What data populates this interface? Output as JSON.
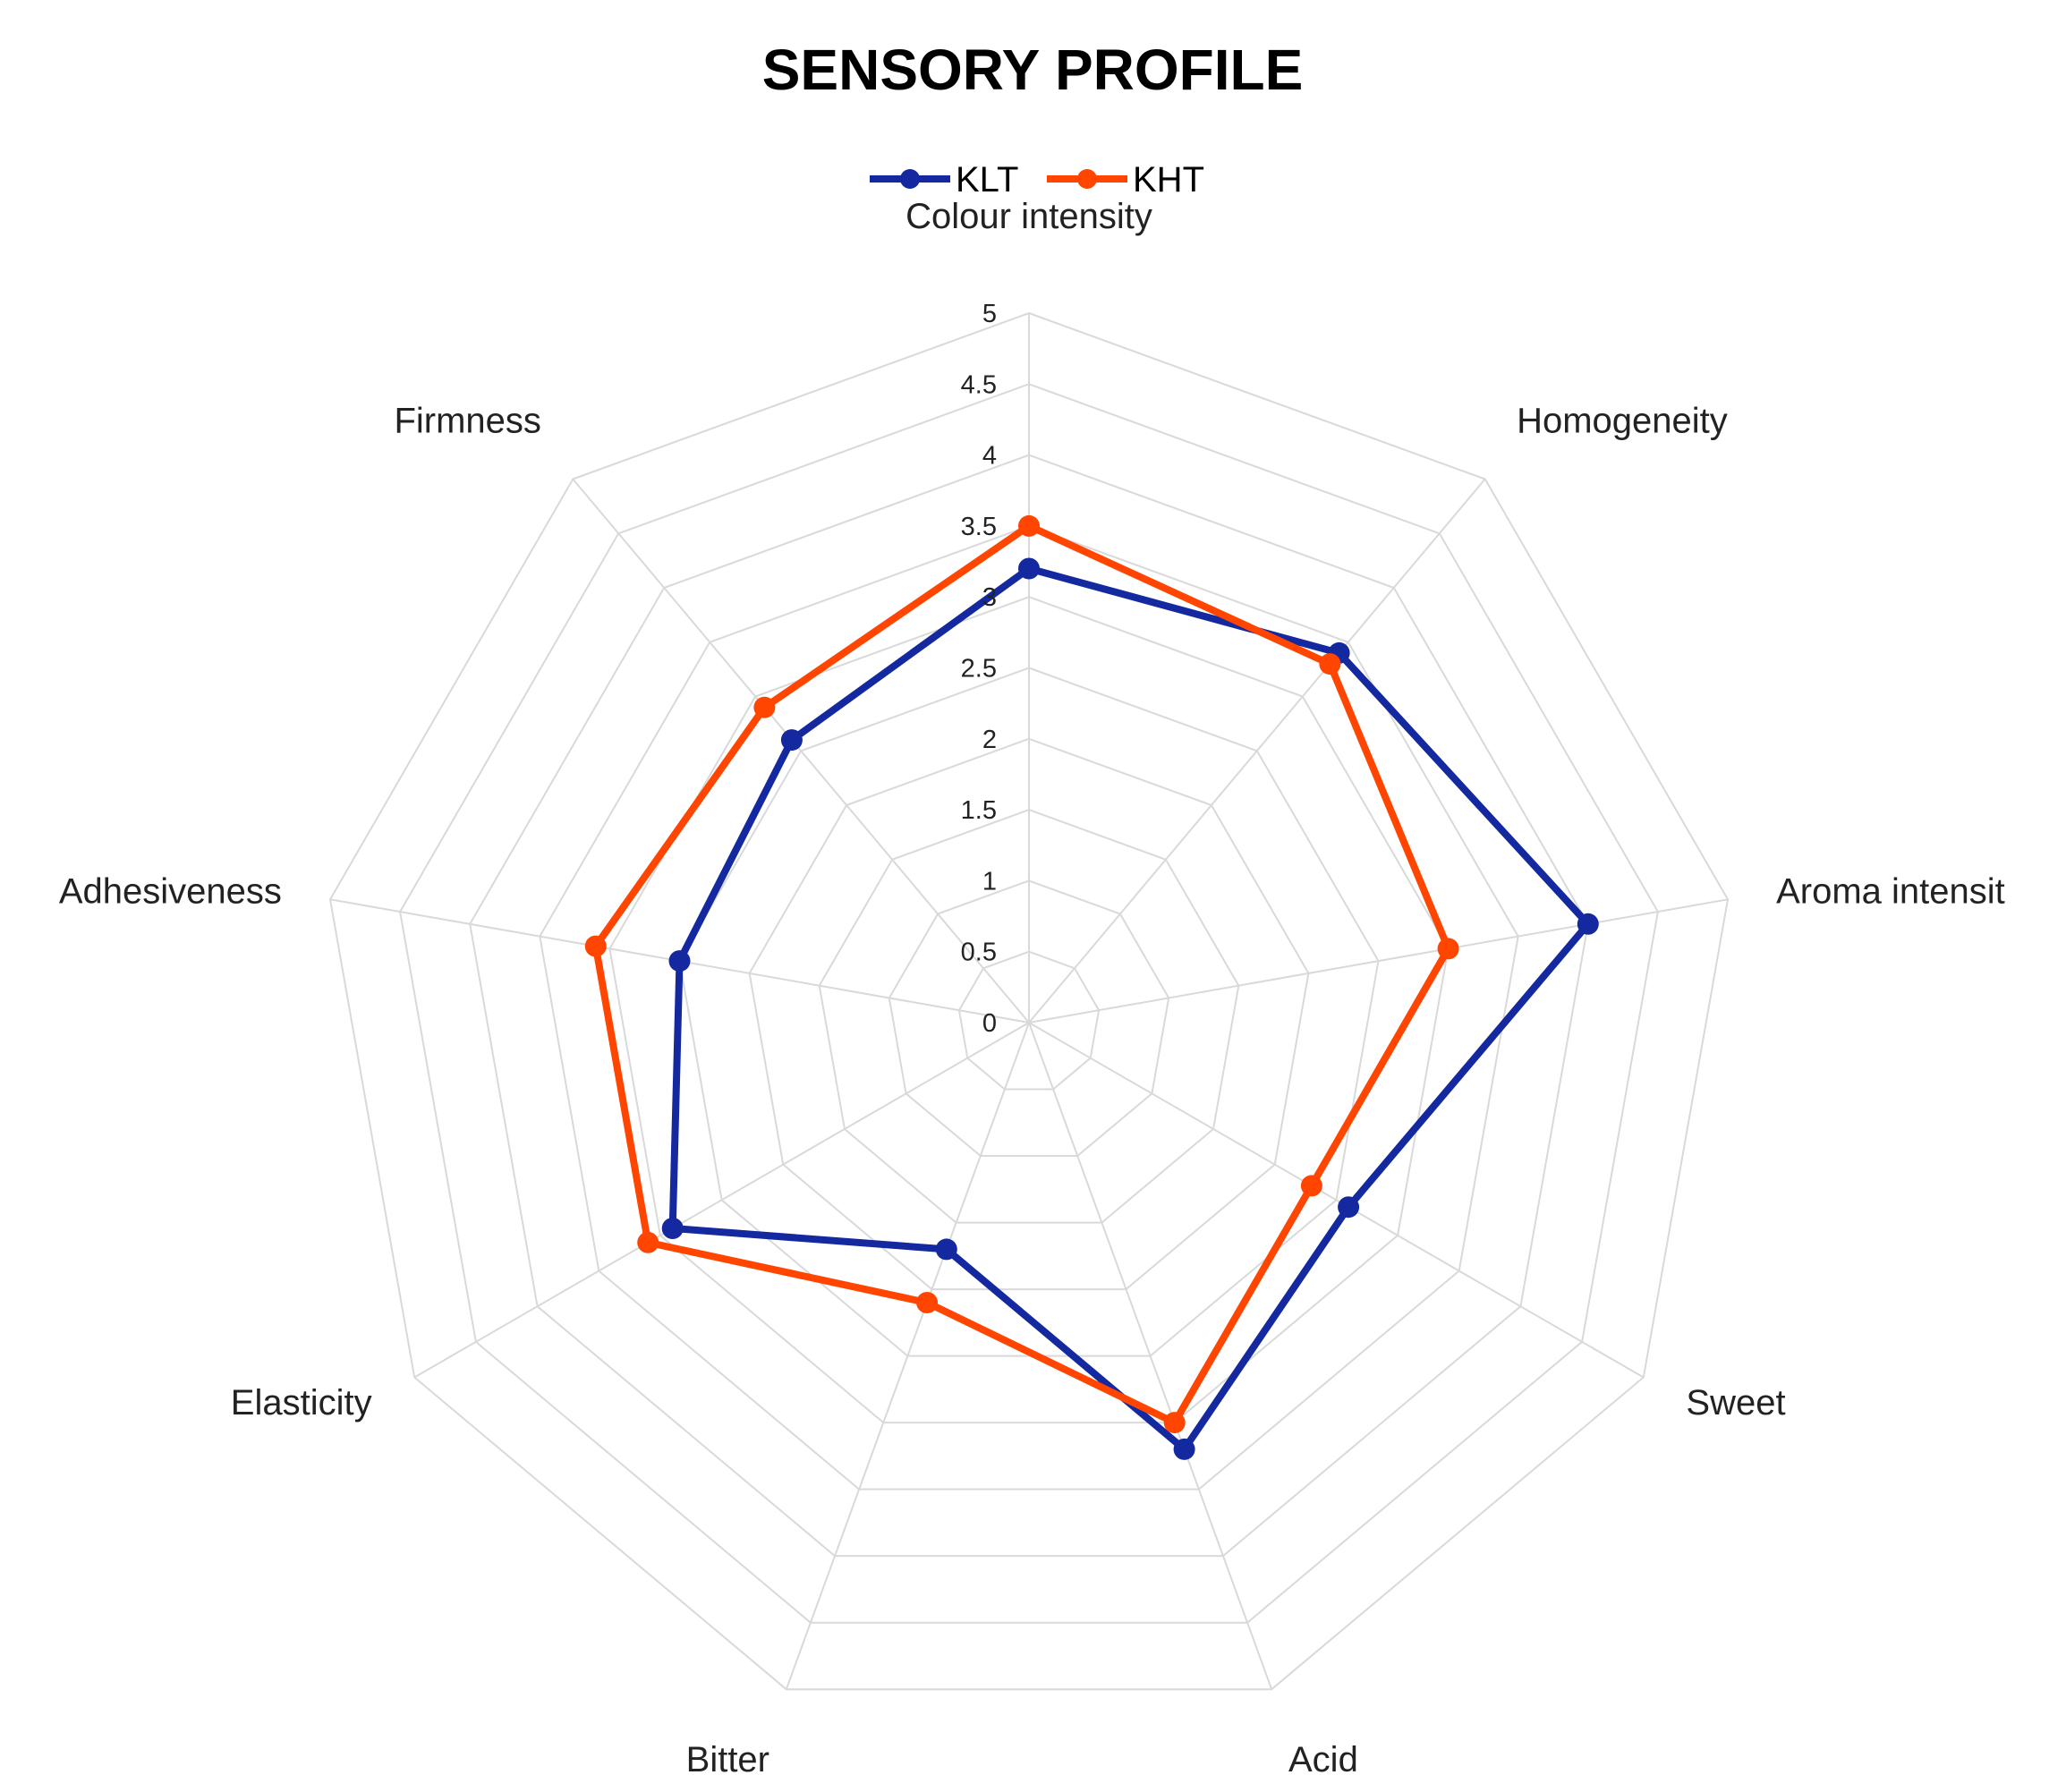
{
  "chart_data": {
    "type": "radar",
    "title": "SENSORY PROFILE",
    "categories": [
      "Colour intensity",
      "Homogeneity",
      "Aroma intensit",
      "Sweet",
      "Acid",
      "Bitter",
      "Elasticity",
      "Adhesiveness",
      "Firmness"
    ],
    "rlim": [
      0,
      5
    ],
    "ticks": [
      "0",
      "0.5",
      "1",
      "1.5",
      "2",
      "2.5",
      "3",
      "3.5",
      "4",
      "4.5",
      "5"
    ],
    "grid": true,
    "legend_position": "top-center",
    "series": [
      {
        "name": "KLT",
        "color": "#1428A0",
        "values": [
          3.2,
          3.4,
          4.0,
          2.6,
          3.2,
          1.7,
          2.9,
          2.5,
          2.6
        ]
      },
      {
        "name": "KHT",
        "color": "#FF4500",
        "values": [
          3.5,
          3.3,
          3.0,
          2.3,
          3.0,
          2.1,
          3.1,
          3.1,
          2.9
        ]
      }
    ]
  }
}
